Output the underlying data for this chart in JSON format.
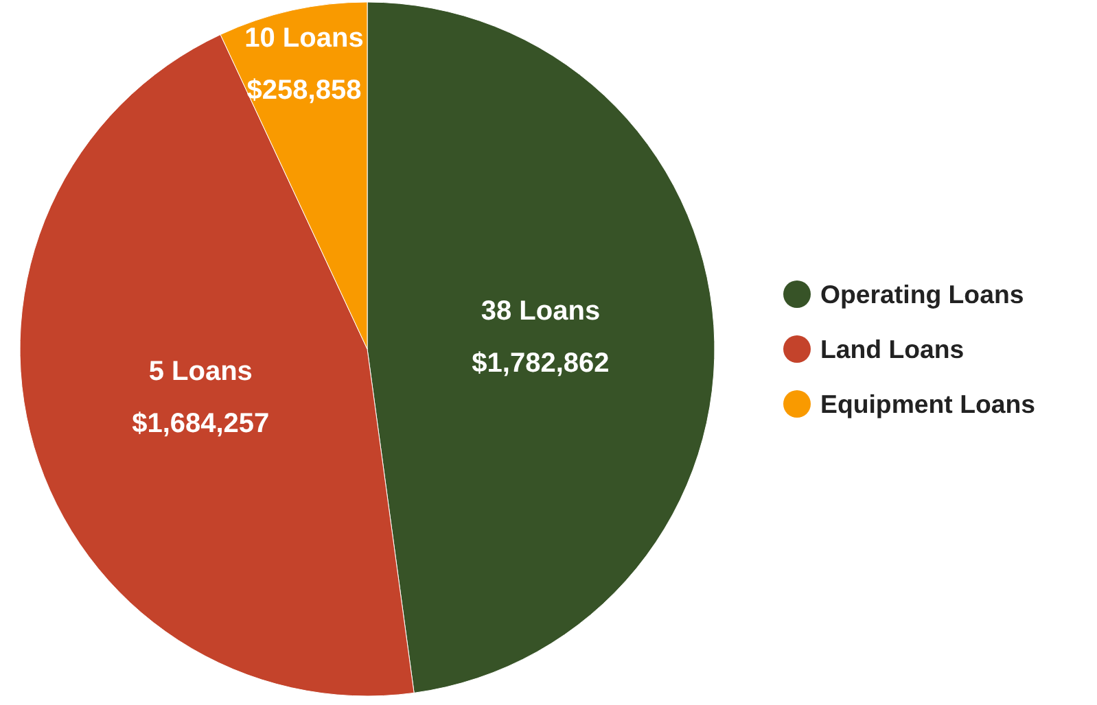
{
  "chart_data": {
    "type": "pie",
    "categories": [
      "Operating Loans",
      "Land Loans",
      "Equipment Loans"
    ],
    "values": [
      1782862,
      1684257,
      258858
    ],
    "colors": [
      "#375327",
      "#c4432b",
      "#f99a00"
    ],
    "value_labels": [
      "38 Loans\n$1,782,862",
      "5 Loans\n$1,684,257",
      "10 Loans\n$258,858"
    ],
    "legend": "right"
  }
}
